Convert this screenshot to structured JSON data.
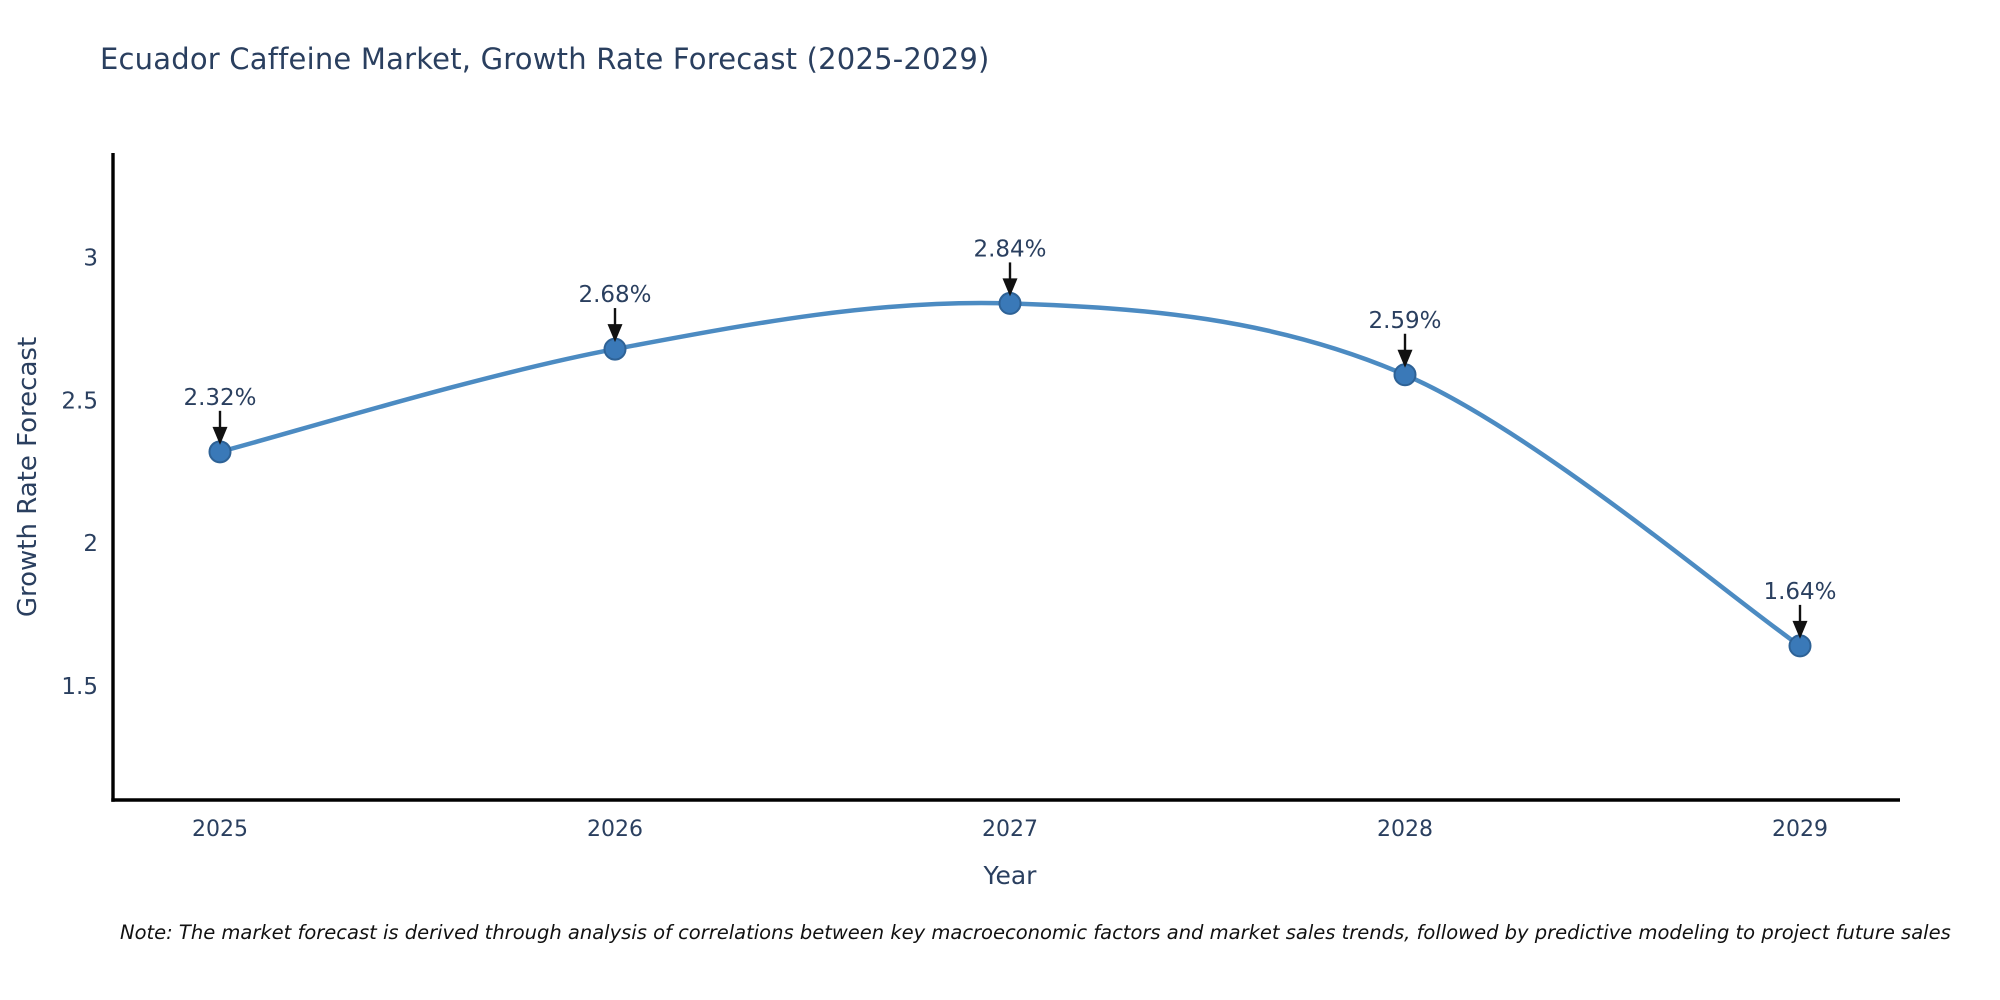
{
  "title": "Ecuador Caffeine Market, Growth Rate Forecast (2025-2029)",
  "note": "Note: The market forecast is derived through analysis of correlations between key macroeconomic factors and market sales trends, followed by predictive modeling to project future sales",
  "chart_data": {
    "type": "line",
    "title": "Ecuador Caffeine Market, Growth Rate Forecast (2025-2029)",
    "xlabel": "Year",
    "ylabel": "Growth Rate Forecast",
    "categories": [
      "2025",
      "2026",
      "2027",
      "2028",
      "2029"
    ],
    "series": [
      {
        "name": "Growth Rate Forecast",
        "values": [
          2.32,
          2.68,
          2.84,
          2.59,
          1.64
        ]
      }
    ],
    "point_labels": [
      "2.32%",
      "2.68%",
      "2.84%",
      "2.59%",
      "1.64%"
    ],
    "yticks": [
      1.5,
      2,
      2.5,
      3
    ],
    "ytick_labels": [
      "1.5",
      "2",
      "2.5",
      "3"
    ],
    "ylim": [
      1.1,
      3.36
    ],
    "line_shape": "spline",
    "grid": false,
    "legend_position": "none",
    "colors": {
      "line": "#4c8bc2",
      "marker": "#3a79b8",
      "marker_edge": "#2e6296",
      "axis": "#000000",
      "text": "#2a3f5f",
      "annotation": "#2a3f5f",
      "arrow": "#111111",
      "note": "#111111",
      "background": "#ffffff"
    }
  }
}
